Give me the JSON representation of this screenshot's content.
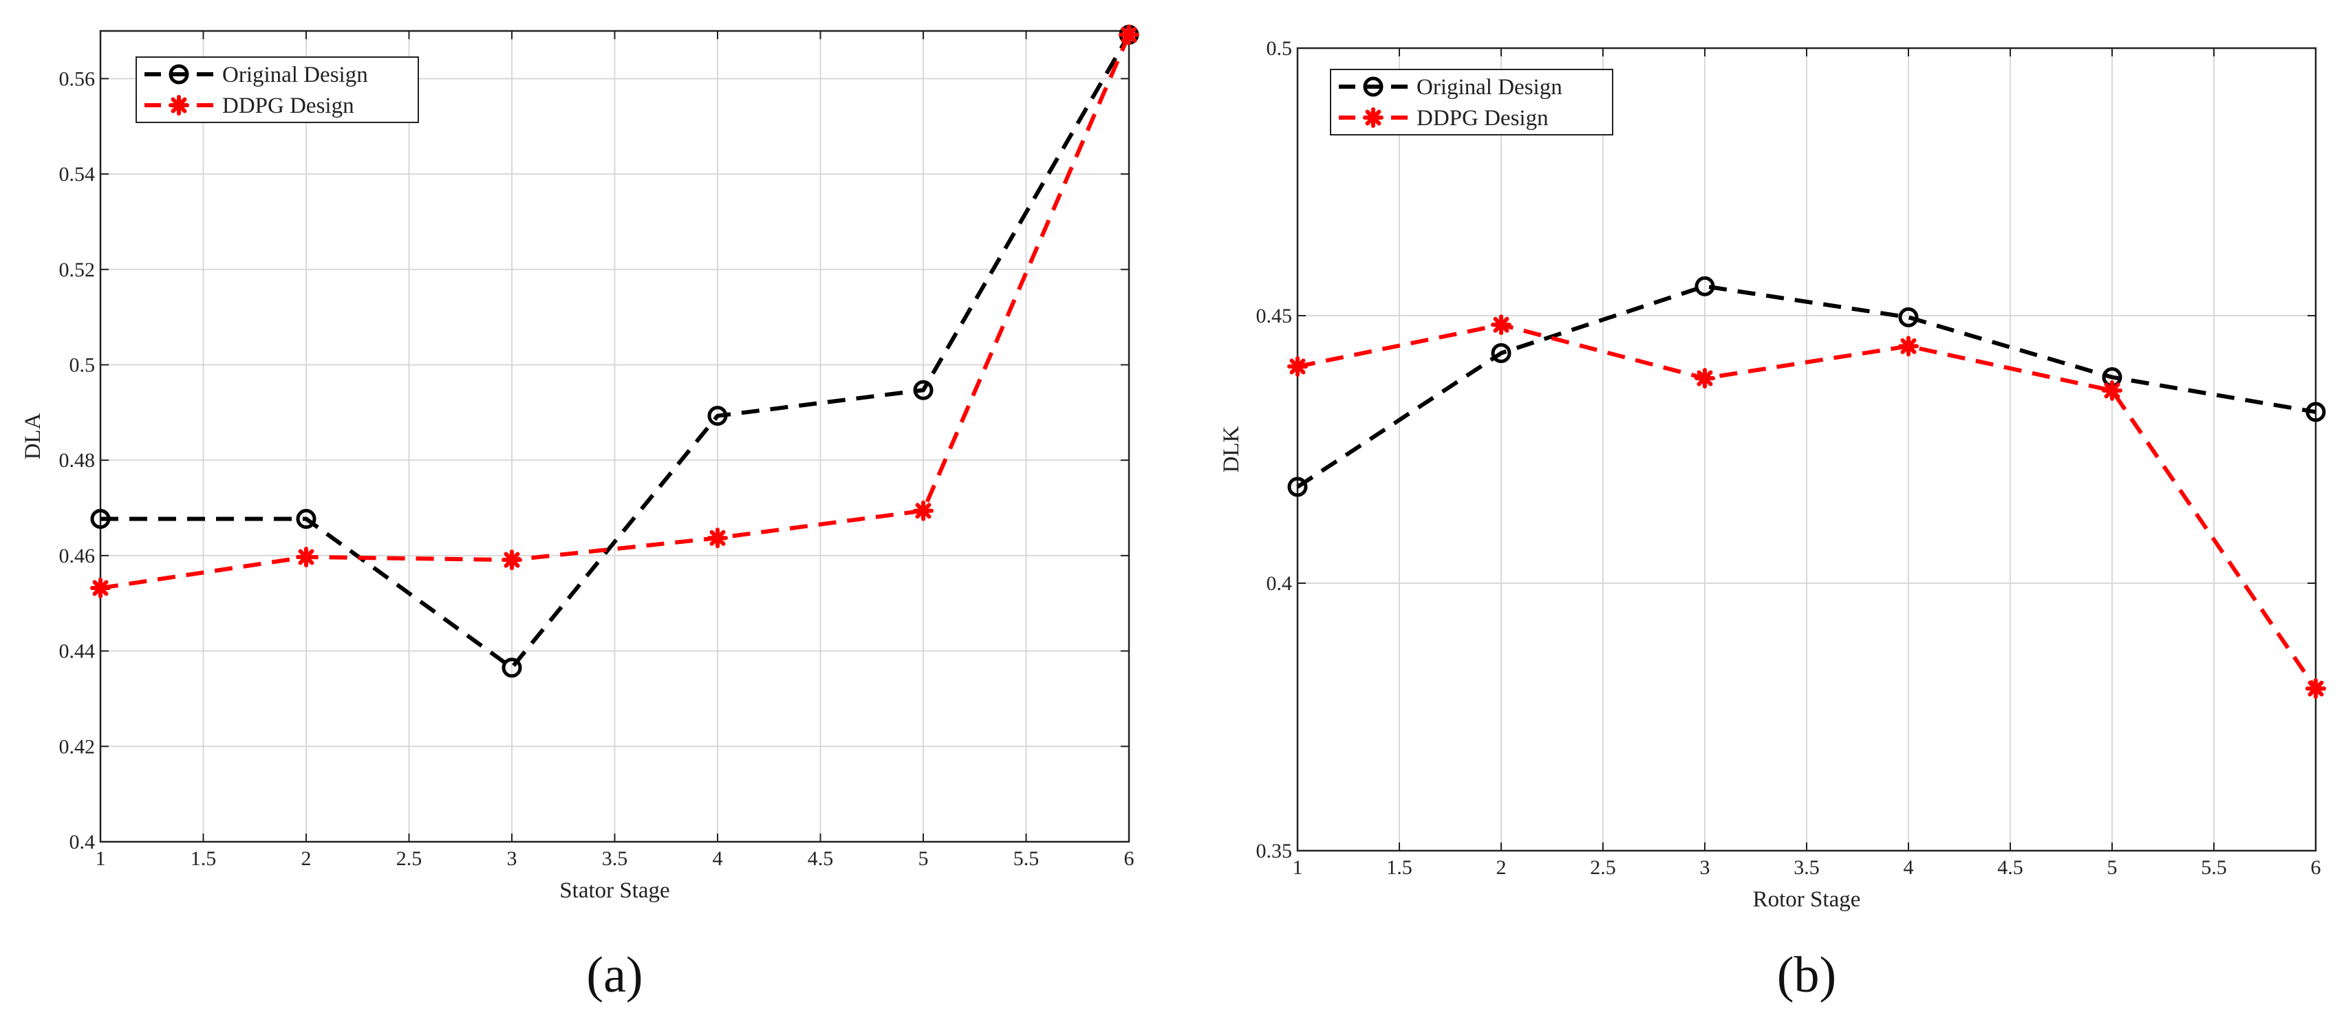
{
  "chart_data": [
    {
      "type": "line",
      "panel_label": "(a)",
      "xlabel": "Stator Stage",
      "ylabel": "DLA",
      "xlim": [
        1,
        6
      ],
      "ylim": [
        0.4,
        0.57
      ],
      "xticks": [
        1,
        1.5,
        2,
        2.5,
        3,
        3.5,
        4,
        4.5,
        5,
        5.5,
        6
      ],
      "xtick_labels": [
        "1",
        "1.5",
        "2",
        "2.5",
        "3",
        "3.5",
        "4",
        "4.5",
        "5",
        "5.5",
        "6"
      ],
      "yticks": [
        0.4,
        0.42,
        0.44,
        0.46,
        0.48,
        0.5,
        0.52,
        0.54,
        0.56
      ],
      "ytick_labels": [
        "0.4",
        "0.42",
        "0.44",
        "0.46",
        "0.48",
        "0.5",
        "0.52",
        "0.54",
        "0.56"
      ],
      "grid": true,
      "legend_position": "top-left",
      "x": [
        1,
        2,
        3,
        4,
        5,
        6
      ],
      "series": [
        {
          "name": "Original Design",
          "color": "#000000",
          "marker": "circle",
          "line_style": "dashed",
          "values": [
            0.4677,
            0.4677,
            0.4365,
            0.4893,
            0.4947,
            0.5692
          ]
        },
        {
          "name": "DDPG Design",
          "color": "#ff0000",
          "marker": "asterisk",
          "line_style": "dashed",
          "values": [
            0.4532,
            0.4597,
            0.4591,
            0.4637,
            0.4694,
            0.5692
          ]
        }
      ]
    },
    {
      "type": "line",
      "panel_label": "(b)",
      "xlabel": "Rotor Stage",
      "ylabel": "DLK",
      "xlim": [
        1,
        6
      ],
      "ylim": [
        0.35,
        0.5
      ],
      "xticks": [
        1,
        1.5,
        2,
        2.5,
        3,
        3.5,
        4,
        4.5,
        5,
        5.5,
        6
      ],
      "xtick_labels": [
        "1",
        "1.5",
        "2",
        "2.5",
        "3",
        "3.5",
        "4",
        "4.5",
        "5",
        "5.5",
        "6"
      ],
      "yticks": [
        0.35,
        0.4,
        0.45,
        0.5
      ],
      "ytick_labels": [
        "0.35",
        "0.4",
        "0.45",
        "0.5"
      ],
      "grid": true,
      "legend_position": "top-left",
      "x": [
        1,
        2,
        3,
        4,
        5,
        6
      ],
      "series": [
        {
          "name": "Original Design",
          "color": "#000000",
          "marker": "circle",
          "line_style": "dashed",
          "values": [
            0.418,
            0.443,
            0.4555,
            0.4497,
            0.4385,
            0.432
          ]
        },
        {
          "name": "DDPG Design",
          "color": "#ff0000",
          "marker": "asterisk",
          "line_style": "dashed",
          "values": [
            0.4405,
            0.4483,
            0.4383,
            0.4443,
            0.436,
            0.3803
          ]
        }
      ]
    }
  ]
}
